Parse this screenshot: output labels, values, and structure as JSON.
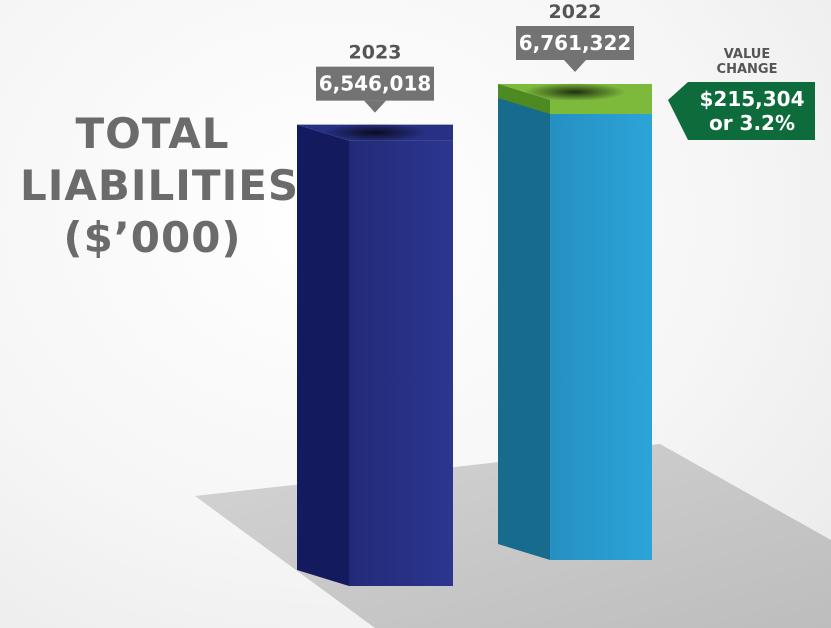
{
  "title": [
    "TOTAL",
    "LIABILITIES",
    "($’000)"
  ],
  "chart_data": {
    "type": "bar",
    "categories": [
      "2023",
      "2022"
    ],
    "values": [
      6546018,
      6761322
    ],
    "value_labels": [
      "6,546,018",
      "6,761,322"
    ],
    "ylabel": "Total Liabilities ($'000)",
    "ylim": [
      0,
      6761322
    ],
    "grid": false,
    "legend": "none",
    "annotation": {
      "heading": [
        "VALUE",
        "CHANGE"
      ],
      "lines": [
        "$215,304",
        "or 3.2%"
      ]
    }
  },
  "colors": {
    "bar_2023_front": "#273083",
    "bar_2023_side": "#141a5e",
    "bar_2022_front": "#2698cc",
    "bar_2022_side": "#176b8d",
    "change_band": "#7dba3c",
    "change_badge": "#0e6b3b",
    "label_box": "#737373",
    "title": "#6b6b6b"
  }
}
